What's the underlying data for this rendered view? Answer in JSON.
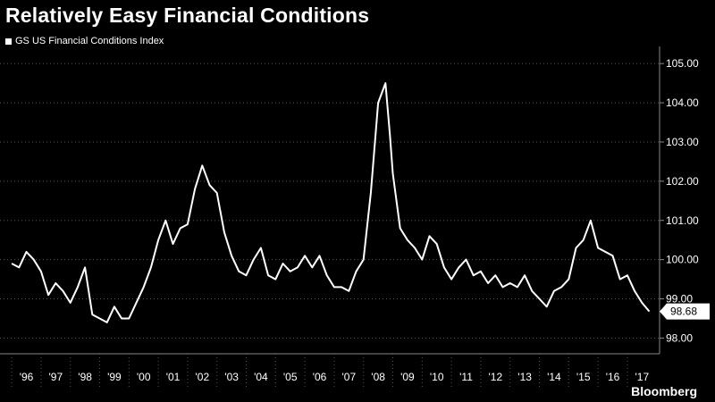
{
  "chart_data": {
    "type": "line",
    "title": "Relatively Easy Financial Conditions",
    "series": [
      {
        "name": "GS US Financial Conditions Index",
        "color": "#ffffff",
        "x": [
          1996.0,
          1996.25,
          1996.5,
          1996.75,
          1997.0,
          1997.25,
          1997.5,
          1997.75,
          1998.0,
          1998.25,
          1998.5,
          1998.75,
          1999.0,
          1999.25,
          1999.5,
          1999.75,
          2000.0,
          2000.25,
          2000.5,
          2000.75,
          2001.0,
          2001.25,
          2001.5,
          2001.75,
          2002.0,
          2002.25,
          2002.5,
          2002.75,
          2003.0,
          2003.25,
          2003.5,
          2003.75,
          2004.0,
          2004.25,
          2004.5,
          2004.75,
          2005.0,
          2005.25,
          2005.5,
          2005.75,
          2006.0,
          2006.25,
          2006.5,
          2006.75,
          2007.0,
          2007.25,
          2007.5,
          2007.75,
          2008.0,
          2008.25,
          2008.5,
          2008.75,
          2008.9,
          2009.0,
          2009.25,
          2009.5,
          2009.75,
          2010.0,
          2010.25,
          2010.5,
          2010.75,
          2011.0,
          2011.25,
          2011.5,
          2011.75,
          2012.0,
          2012.25,
          2012.5,
          2012.75,
          2013.0,
          2013.25,
          2013.5,
          2013.75,
          2014.0,
          2014.25,
          2014.5,
          2014.75,
          2015.0,
          2015.25,
          2015.5,
          2015.75,
          2016.0,
          2016.25,
          2016.5,
          2016.75,
          2017.0,
          2017.25,
          2017.5,
          2017.75
        ],
        "values": [
          99.9,
          99.8,
          100.2,
          100.0,
          99.7,
          99.1,
          99.4,
          99.2,
          98.9,
          99.3,
          99.8,
          98.6,
          98.5,
          98.4,
          98.8,
          98.5,
          98.5,
          98.9,
          99.3,
          99.8,
          100.5,
          101.0,
          100.4,
          100.8,
          100.9,
          101.8,
          102.4,
          101.9,
          101.7,
          100.7,
          100.1,
          99.7,
          99.6,
          100.0,
          100.3,
          99.6,
          99.5,
          99.9,
          99.7,
          99.8,
          100.1,
          99.8,
          100.1,
          99.6,
          99.3,
          99.3,
          99.2,
          99.7,
          100.0,
          101.7,
          104.0,
          104.5,
          103.2,
          102.2,
          100.8,
          100.5,
          100.3,
          100.0,
          100.6,
          100.4,
          99.8,
          99.5,
          99.8,
          100.0,
          99.6,
          99.7,
          99.4,
          99.6,
          99.3,
          99.4,
          99.3,
          99.6,
          99.2,
          99.0,
          98.8,
          99.2,
          99.3,
          99.5,
          100.3,
          100.5,
          101.0,
          100.3,
          100.2,
          100.1,
          99.5,
          99.6,
          99.2,
          98.9,
          98.68
        ]
      }
    ],
    "last_value_label": "98.68",
    "ylim": [
      97.6,
      105.3
    ],
    "xlim": [
      1995.6,
      2018.1
    ],
    "yticks": [
      "98.00",
      "99.00",
      "100.00",
      "101.00",
      "102.00",
      "103.00",
      "104.00",
      "105.00"
    ],
    "xticks": [
      "'96",
      "'97",
      "'98",
      "'99",
      "'00",
      "'01",
      "'02",
      "'03",
      "'04",
      "'05",
      "'06",
      "'07",
      "'08",
      "'09",
      "'10",
      "'11",
      "'12",
      "'13",
      "'14",
      "'15",
      "'16",
      "'17"
    ],
    "grid": true,
    "legend_position": "top-left"
  },
  "source": "Bloomberg"
}
